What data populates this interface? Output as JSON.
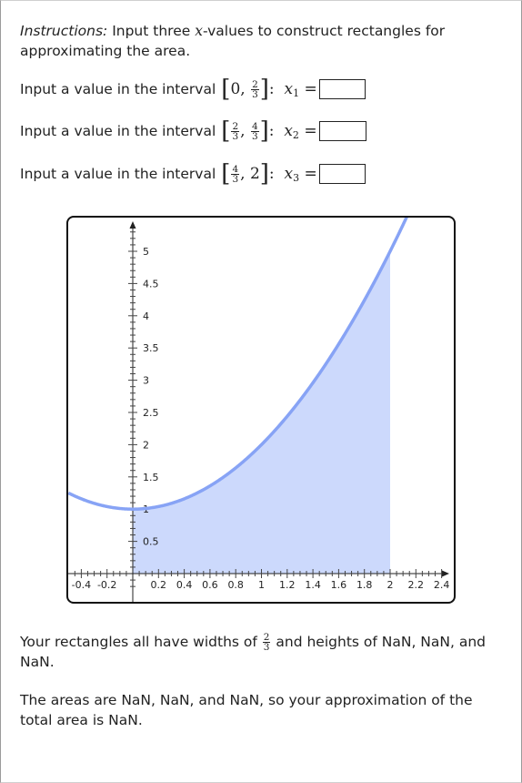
{
  "instructions": {
    "prefix": "Instructions:",
    "text_before_var": " Input three ",
    "var": "x",
    "text_after_var": "-values to construct rectangles for approximating the area."
  },
  "inputs": [
    {
      "label": "Input a value in the interval",
      "lo_whole": "0",
      "lo_num": "",
      "lo_den": "",
      "hi_whole": "",
      "hi_num": "2",
      "hi_den": "3",
      "var": "x",
      "sub": "1",
      "value": ""
    },
    {
      "label": "Input a value in the interval",
      "lo_whole": "",
      "lo_num": "2",
      "lo_den": "3",
      "hi_whole": "",
      "hi_num": "4",
      "hi_den": "3",
      "var": "x",
      "sub": "2",
      "value": ""
    },
    {
      "label": "Input a value in the interval",
      "lo_whole": "",
      "lo_num": "4",
      "lo_den": "3",
      "hi_whole": "2",
      "hi_num": "",
      "hi_den": "",
      "var": "x",
      "sub": "3",
      "value": ""
    }
  ],
  "result1": {
    "before": "Your rectangles all have widths of ",
    "width_num": "2",
    "width_den": "3",
    "after": " and heights of NaN, NaN, and NaN."
  },
  "result2": "The areas are NaN, NaN, and NaN, so your approximation of the total area is NaN.",
  "chart_data": {
    "type": "area",
    "function_description": "y = x^2 + 1",
    "shaded_interval": [
      0,
      2
    ],
    "xlim": [
      -0.5,
      2.45
    ],
    "ylim": [
      -0.2,
      5.4
    ],
    "x_tick_labels": [
      "-0.4",
      "-0.2",
      "0.2",
      "0.4",
      "0.6",
      "0.8",
      "1",
      "1.2",
      "1.4",
      "1.6",
      "1.8",
      "2",
      "2.2",
      "2.4"
    ],
    "y_tick_labels": [
      "0.5",
      "1",
      "1.5",
      "2",
      "2.5",
      "3",
      "3.5",
      "4",
      "4.5",
      "5"
    ],
    "curve_color": "#87a3f5",
    "fill_color": "#ccd9fc"
  }
}
